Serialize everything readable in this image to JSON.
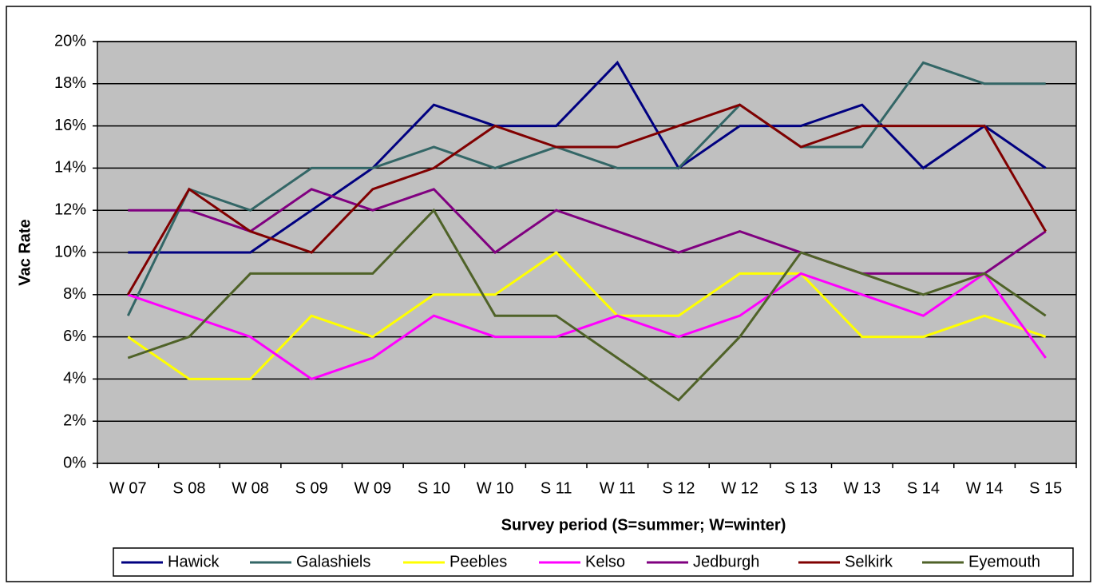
{
  "chart_data": {
    "type": "line",
    "x_label": "Survey period (S=summer; W=winter)",
    "y_label": "Vac Rate",
    "categories": [
      "W 07",
      "S 08",
      "W 08",
      "S 09",
      "W 09",
      "S 10",
      "W 10",
      "S 11",
      "W 11",
      "S 12",
      "W 12",
      "S 13",
      "W 13",
      "S 14",
      "W 14",
      "S 15"
    ],
    "series": [
      {
        "name": "Hawick",
        "color": "#000080",
        "values": [
          10,
          10,
          10,
          12,
          14,
          17,
          16,
          16,
          19,
          14,
          16,
          16,
          17,
          14,
          16,
          14
        ]
      },
      {
        "name": "Galashiels",
        "color": "#336666",
        "values": [
          7,
          13,
          12,
          14,
          14,
          15,
          14,
          15,
          14,
          14,
          17,
          15,
          15,
          19,
          18,
          18
        ]
      },
      {
        "name": "Peebles",
        "color": "#ffff00",
        "values": [
          6,
          4,
          4,
          7,
          6,
          8,
          8,
          10,
          7,
          7,
          9,
          9,
          6,
          6,
          7,
          6
        ]
      },
      {
        "name": "Kelso",
        "color": "#ff00ff",
        "values": [
          8,
          7,
          6,
          4,
          5,
          7,
          6,
          6,
          7,
          6,
          7,
          9,
          8,
          7,
          9,
          5
        ]
      },
      {
        "name": "Jedburgh",
        "color": "#800080",
        "values": [
          12,
          12,
          11,
          13,
          12,
          13,
          10,
          12,
          11,
          10,
          11,
          10,
          9,
          9,
          9,
          11
        ]
      },
      {
        "name": "Selkirk",
        "color": "#800000",
        "values": [
          8,
          13,
          11,
          10,
          13,
          14,
          16,
          15,
          15,
          16,
          17,
          15,
          16,
          16,
          16,
          11
        ]
      },
      {
        "name": "Eyemouth",
        "color": "#4f6228",
        "values": [
          5,
          6,
          9,
          9,
          9,
          12,
          7,
          7,
          5,
          3,
          6,
          10,
          9,
          8,
          9,
          7
        ]
      }
    ],
    "ylim": [
      0,
      20
    ],
    "yticks": [
      {
        "value": 0,
        "label": "0%"
      },
      {
        "value": 2,
        "label": "2%"
      },
      {
        "value": 4,
        "label": "4%"
      },
      {
        "value": 6,
        "label": "6%"
      },
      {
        "value": 8,
        "label": "8%"
      },
      {
        "value": 10,
        "label": "10%"
      },
      {
        "value": 12,
        "label": "12%"
      },
      {
        "value": 14,
        "label": "14%"
      },
      {
        "value": 16,
        "label": "16%"
      },
      {
        "value": 18,
        "label": "18%"
      },
      {
        "value": 20,
        "label": "20%"
      }
    ],
    "grid": true,
    "legend": "bottom"
  }
}
